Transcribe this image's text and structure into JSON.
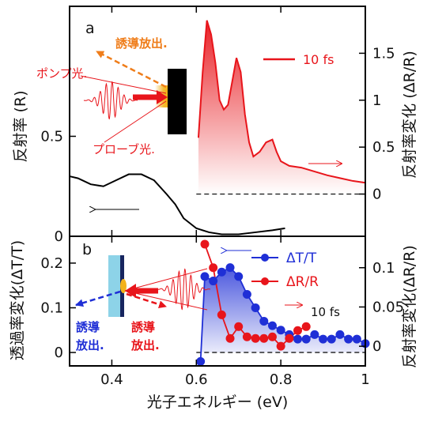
{
  "colors": {
    "red": "#e8151b",
    "blue": "#1f2fd6",
    "orange": "#ef7d1a",
    "black": "#000000",
    "cyan": "#8dd3e8",
    "navy": "#17255f",
    "gold": "#f3b21b"
  },
  "chart_data": [
    {
      "type": "line",
      "panel_label": "a",
      "xlabel": "光子エネルギー (eV)",
      "xlim": [
        0.3,
        1.0
      ],
      "x_ticks": [
        "0.4",
        "0.6",
        "0.8",
        "1"
      ],
      "x_tick_values": [
        0.4,
        0.6,
        0.8,
        1.0
      ],
      "left_axis": {
        "label": "反射率 (R)",
        "ylim": [
          0,
          1.15
        ],
        "ticks": [
          "0",
          "0.5"
        ],
        "tick_values": [
          0,
          0.5
        ]
      },
      "right_axis": {
        "label": "反射率変化 (ΔR/R)",
        "ylim": [
          -0.45,
          2.0
        ],
        "ticks": [
          "0",
          "0.5",
          "1",
          "1.5"
        ],
        "tick_values": [
          0,
          0.5,
          1.0,
          1.5
        ]
      },
      "series": [
        {
          "name": "",
          "axis": "left",
          "color": "#000000",
          "x": [
            0.3,
            0.32,
            0.35,
            0.38,
            0.41,
            0.44,
            0.47,
            0.5,
            0.53,
            0.55,
            0.57,
            0.6,
            0.63,
            0.66,
            0.7,
            0.74,
            0.78,
            0.81
          ],
          "y": [
            0.3,
            0.29,
            0.26,
            0.25,
            0.28,
            0.31,
            0.31,
            0.28,
            0.21,
            0.16,
            0.09,
            0.04,
            0.02,
            0.01,
            0.01,
            0.02,
            0.03,
            0.04
          ]
        },
        {
          "name": "10 fs",
          "axis": "right",
          "color": "#e8151b",
          "filled": true,
          "x": [
            0.605,
            0.615,
            0.625,
            0.635,
            0.645,
            0.655,
            0.665,
            0.675,
            0.685,
            0.695,
            0.705,
            0.715,
            0.725,
            0.735,
            0.75,
            0.765,
            0.78,
            0.79,
            0.8,
            0.82,
            0.85,
            0.88,
            0.91,
            0.94,
            0.97,
            1.0
          ],
          "y": [
            0.6,
            1.3,
            1.85,
            1.7,
            1.4,
            1.0,
            0.9,
            0.95,
            1.2,
            1.45,
            1.3,
            0.85,
            0.55,
            0.4,
            0.45,
            0.55,
            0.58,
            0.45,
            0.35,
            0.3,
            0.28,
            0.24,
            0.2,
            0.17,
            0.14,
            0.12
          ]
        }
      ]
    },
    {
      "type": "scatter",
      "panel_label": "b",
      "xlabel": "光子エネルギー (eV)",
      "xlim": [
        0.3,
        1.0
      ],
      "x_ticks": [
        "0.4",
        "0.6",
        "0.8",
        "1"
      ],
      "x_tick_values": [
        0.4,
        0.6,
        0.8,
        1.0
      ],
      "left_axis": {
        "label": "透過率変化(ΔT/T)",
        "ylim": [
          -0.03,
          0.26
        ],
        "ticks": [
          "0",
          "0.1",
          "0.2"
        ],
        "tick_values": [
          0,
          0.1,
          0.2
        ]
      },
      "right_axis": {
        "label": "反射率変化(ΔR/R)",
        "ylim": [
          -0.025,
          0.14
        ],
        "ticks": [
          "0",
          "0.05",
          "0.1"
        ],
        "tick_values": [
          0,
          0.05,
          0.1
        ]
      },
      "series": [
        {
          "name": "ΔT/T",
          "axis": "left",
          "color": "#1f2fd6",
          "filled": true,
          "x": [
            0.61,
            0.62,
            0.64,
            0.66,
            0.68,
            0.7,
            0.72,
            0.74,
            0.76,
            0.78,
            0.8,
            0.82,
            0.84,
            0.86,
            0.88,
            0.9,
            0.92,
            0.94,
            0.96,
            0.98,
            1.0
          ],
          "y": [
            -0.02,
            0.17,
            0.16,
            0.18,
            0.19,
            0.17,
            0.13,
            0.1,
            0.07,
            0.06,
            0.05,
            0.04,
            0.03,
            0.03,
            0.04,
            0.03,
            0.03,
            0.04,
            0.03,
            0.03,
            0.02
          ]
        },
        {
          "name": "ΔR/R",
          "axis": "right",
          "color": "#e8151b",
          "x": [
            0.62,
            0.64,
            0.66,
            0.68,
            0.7,
            0.72,
            0.74,
            0.76,
            0.78,
            0.8,
            0.82,
            0.84,
            0.86
          ],
          "y": [
            0.13,
            0.1,
            0.04,
            0.01,
            0.025,
            0.012,
            0.01,
            0.01,
            0.012,
            0.0,
            0.01,
            0.02,
            0.025
          ]
        }
      ]
    }
  ],
  "annotations": {
    "a_stimulated_emission": "誘導放出.",
    "a_pump": "ポンプ光.",
    "a_probe": "プローブ光.",
    "b_trans_emission_1": "誘導",
    "b_trans_emission_2": "放出.",
    "b_refl_emission_1": "誘導",
    "b_refl_emission_2": "放出.",
    "b_pulse": "10 fs"
  }
}
